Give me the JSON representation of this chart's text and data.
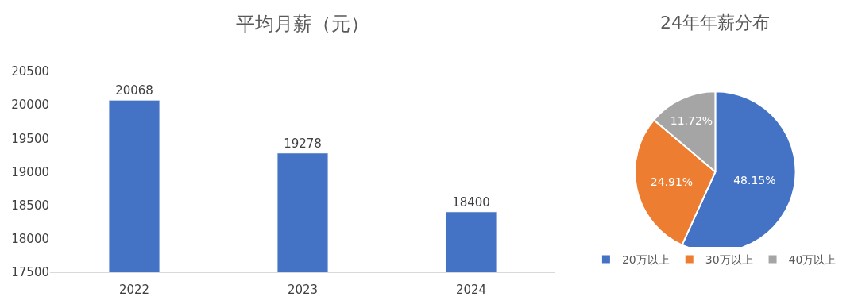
{
  "chart_data": [
    {
      "type": "bar",
      "title": "平均月薪（元）",
      "categories": [
        "2022",
        "2023",
        "2024"
      ],
      "values": [
        20068,
        19278,
        18400
      ],
      "color": "#4472c4",
      "ylim": [
        17500,
        20500
      ],
      "yticks": [
        17500,
        18000,
        18500,
        19000,
        19500,
        20000,
        20500
      ],
      "legend": false,
      "data_labels": true
    },
    {
      "type": "pie",
      "title": "24年年薪分布",
      "categories": [
        "20万以上",
        "30万以上",
        "40万以上"
      ],
      "values": [
        48.15,
        24.91,
        11.72
      ],
      "value_labels": [
        "48.15%",
        "24.91%",
        "11.72%"
      ],
      "colors": [
        "#4472c4",
        "#ed7d31",
        "#a5a5a5"
      ],
      "legend": "bottom"
    }
  ]
}
